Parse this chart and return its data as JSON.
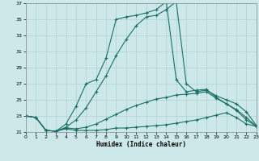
{
  "xlabel": "Humidex (Indice chaleur)",
  "bg_color": "#cce8e8",
  "grid_color": "#b0d0d0",
  "line_color": "#1a7068",
  "xlim": [
    0,
    23
  ],
  "ylim": [
    21,
    37
  ],
  "yticks": [
    21,
    23,
    25,
    27,
    29,
    31,
    33,
    35,
    37
  ],
  "xticks": [
    0,
    1,
    2,
    3,
    4,
    5,
    6,
    7,
    8,
    9,
    10,
    11,
    12,
    13,
    14,
    15,
    16,
    17,
    18,
    19,
    20,
    21,
    22,
    23
  ],
  "line1_x": [
    0,
    1,
    2,
    3,
    4,
    5,
    6,
    7,
    8,
    9,
    10,
    11,
    12,
    13,
    14,
    15,
    16,
    17,
    18,
    19,
    20,
    21,
    22,
    23
  ],
  "line1_y": [
    23,
    22.8,
    21.2,
    21.1,
    21.4,
    21.2,
    21.2,
    21.2,
    21.3,
    21.5,
    21.5,
    21.6,
    21.7,
    21.8,
    21.9,
    22.1,
    22.3,
    22.5,
    22.8,
    23.1,
    23.4,
    22.8,
    22.0,
    21.7
  ],
  "line2_x": [
    0,
    1,
    2,
    3,
    4,
    5,
    6,
    7,
    8,
    9,
    10,
    11,
    12,
    13,
    14,
    15,
    16,
    17,
    18,
    19,
    20,
    21,
    22,
    23
  ],
  "line2_y": [
    23,
    22.8,
    21.2,
    21.1,
    21.5,
    21.4,
    21.6,
    22.0,
    22.6,
    23.2,
    23.8,
    24.3,
    24.7,
    25.1,
    25.3,
    25.6,
    25.7,
    25.8,
    26.0,
    25.2,
    24.5,
    23.7,
    22.5,
    21.7
  ],
  "line3_x": [
    0,
    1,
    2,
    3,
    4,
    5,
    6,
    7,
    8,
    9,
    10,
    11,
    12,
    13,
    14,
    15,
    16,
    17,
    18,
    19,
    20,
    21,
    22,
    23
  ],
  "line3_y": [
    23,
    22.8,
    21.2,
    21.1,
    21.6,
    22.5,
    24.0,
    26.0,
    28.0,
    30.5,
    32.5,
    34.2,
    35.3,
    35.5,
    36.2,
    37.2,
    27.0,
    26.0,
    26.2,
    25.5,
    25.0,
    24.5,
    23.5,
    21.8
  ],
  "line4_x": [
    0,
    1,
    2,
    3,
    4,
    5,
    6,
    7,
    8,
    9,
    10,
    11,
    12,
    13,
    14,
    15,
    16,
    17,
    18,
    19,
    20,
    21,
    22,
    23
  ],
  "line4_y": [
    23,
    22.8,
    21.2,
    21.1,
    22.0,
    24.2,
    27.0,
    27.5,
    30.2,
    35.0,
    35.3,
    35.5,
    35.8,
    36.2,
    37.2,
    27.5,
    26.0,
    26.2,
    26.3,
    25.3,
    24.5,
    23.8,
    22.8,
    21.7
  ]
}
